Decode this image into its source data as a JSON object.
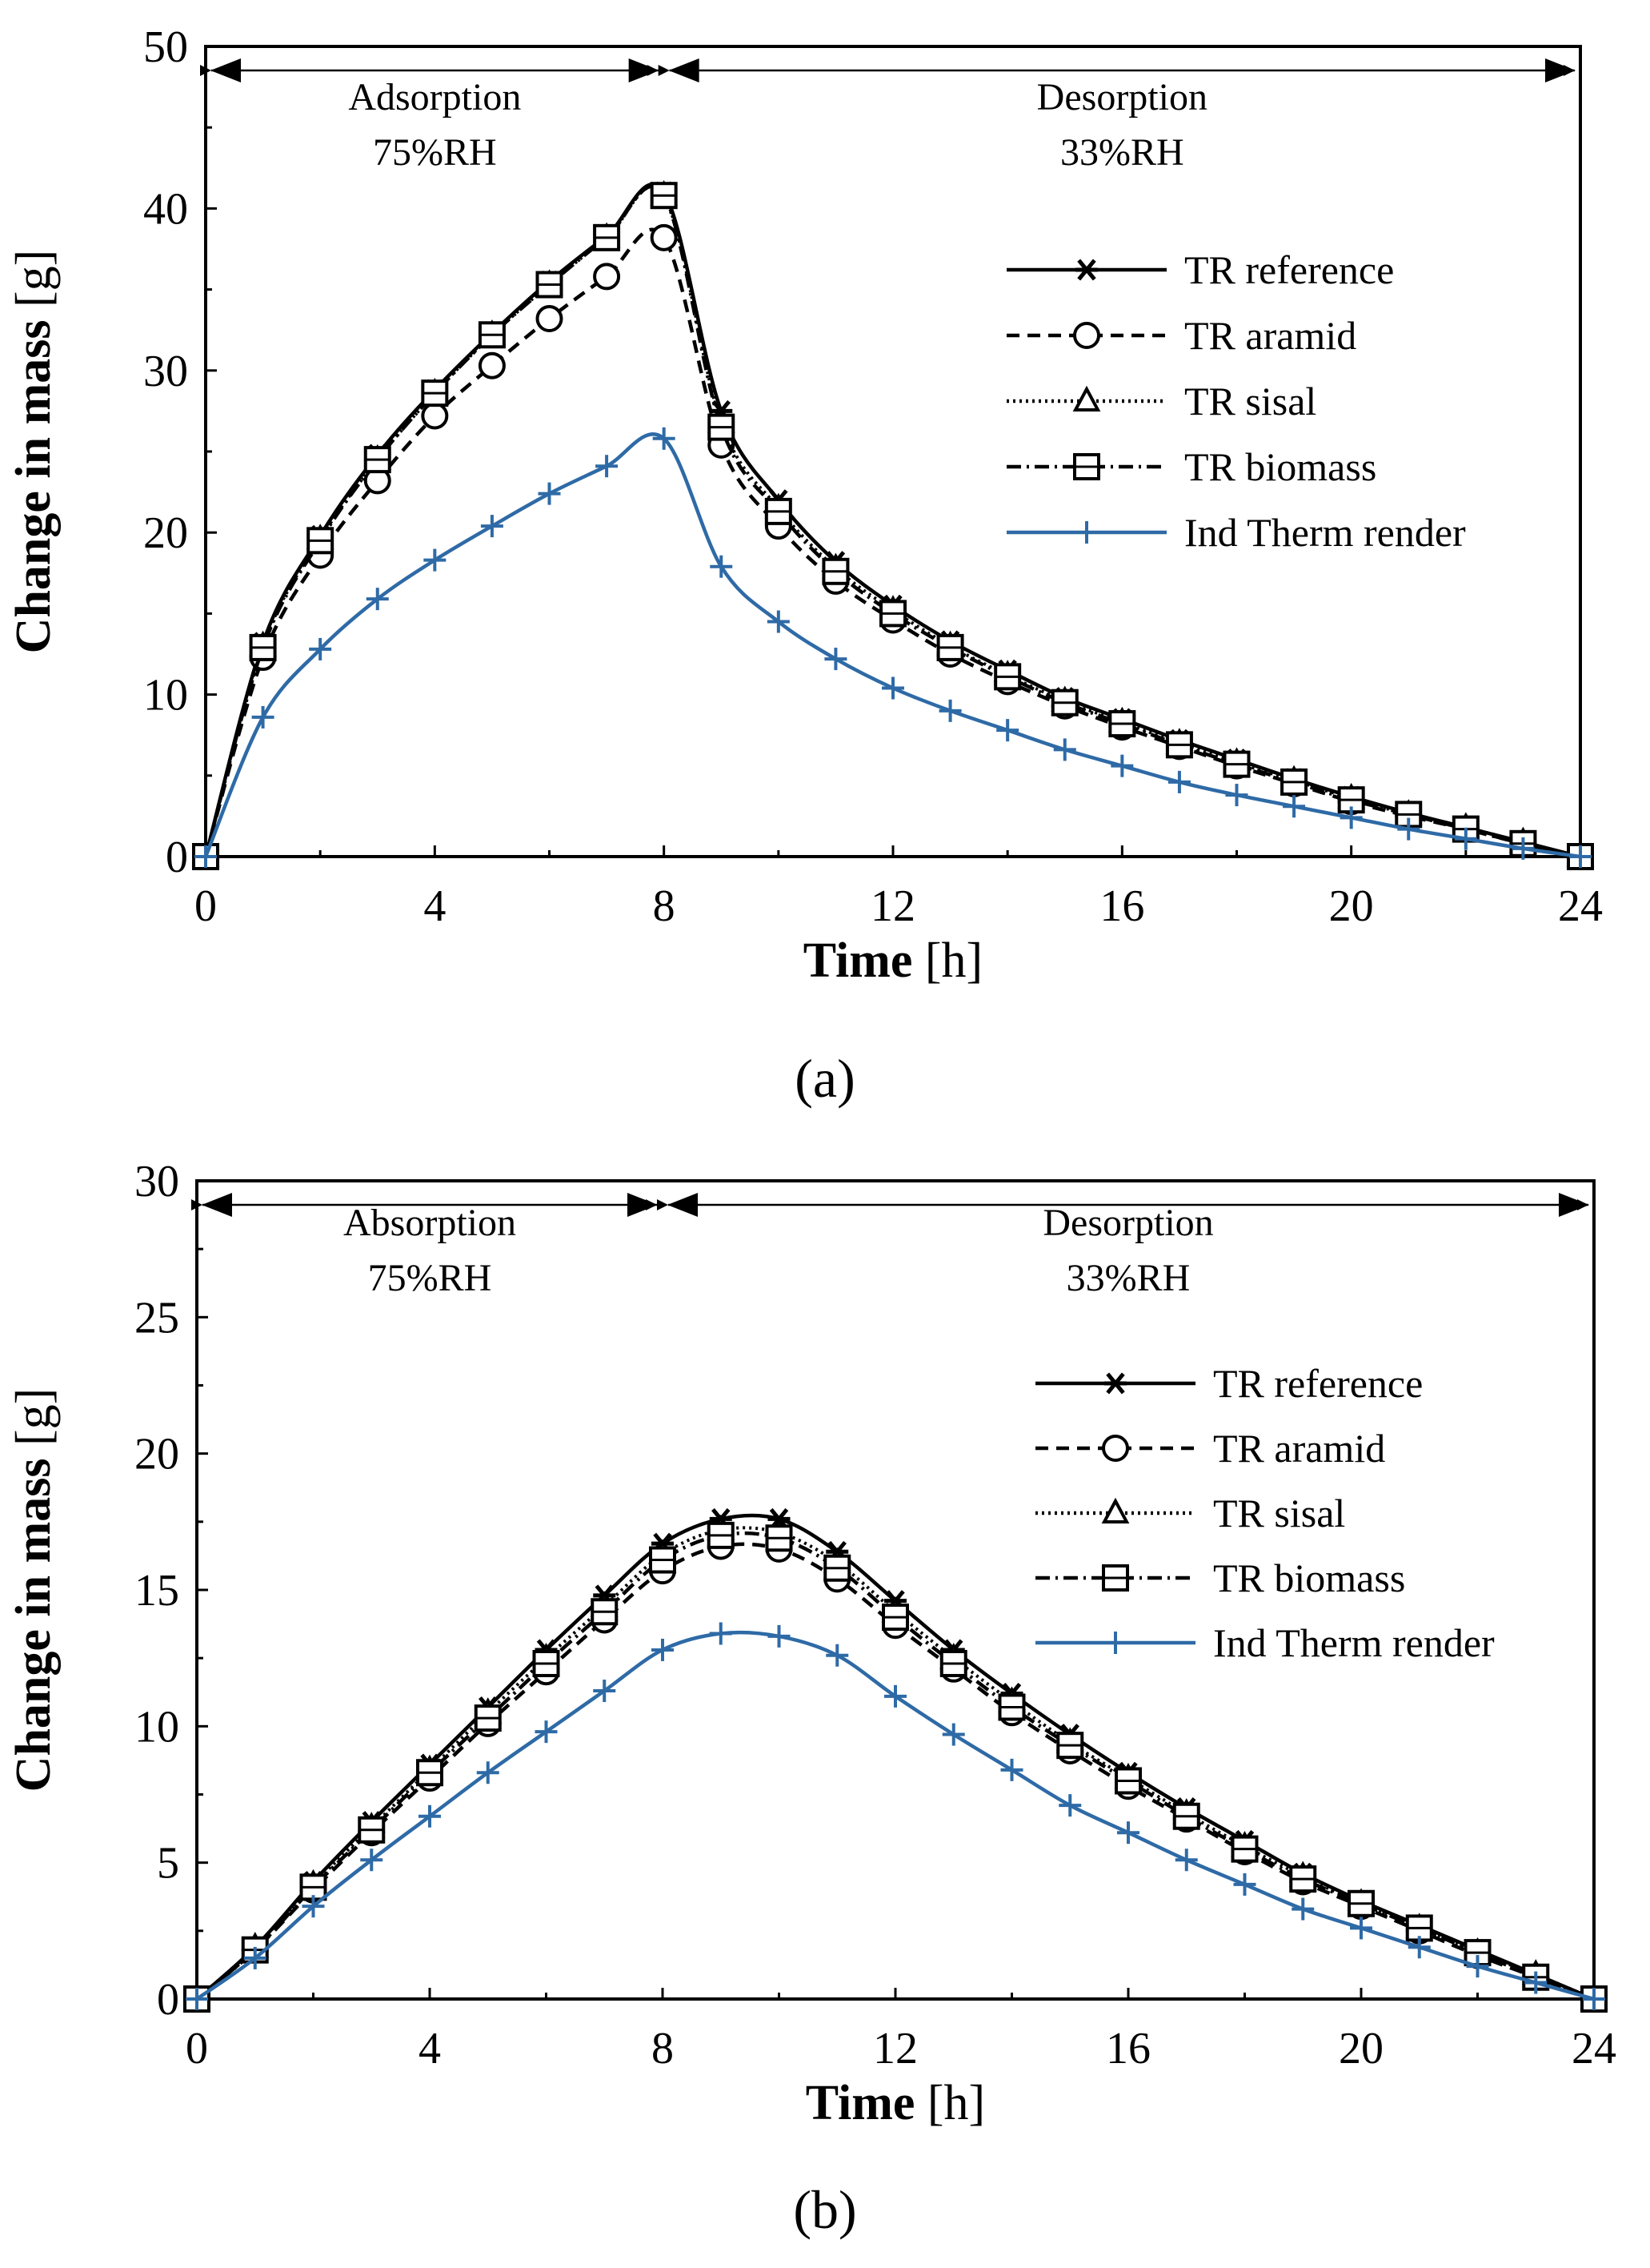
{
  "chart_data": [
    {
      "type": "line",
      "panel_label": "(a)",
      "title": "",
      "xlabel_bold": "Time",
      "xlabel_unit": "[h]",
      "ylabel_bold": "Change in mass",
      "ylabel_unit": "[g]",
      "xlim": [
        0,
        24
      ],
      "ylim": [
        0,
        50
      ],
      "xticks": [
        "0",
        "4",
        "8",
        "12",
        "16",
        "20",
        "24"
      ],
      "yticks": [
        "0",
        "10",
        "20",
        "30",
        "40",
        "50"
      ],
      "grid": false,
      "legend_position": "right",
      "phases": [
        {
          "name": "Adsorption",
          "condition": "75%RH",
          "from": 0,
          "to": 8
        },
        {
          "name": "Desorption",
          "condition": "33%RH",
          "from": 8,
          "to": 24
        }
      ],
      "x": [
        0,
        1,
        2,
        3,
        4,
        5,
        6,
        7,
        8,
        9,
        10,
        11,
        12,
        13,
        14,
        15,
        16,
        17,
        18,
        19,
        20,
        21,
        22,
        23,
        24
      ],
      "series": [
        {
          "name": "TR reference",
          "color": "#000000",
          "dash": "",
          "marker": "star",
          "values": [
            0,
            13.2,
            19.8,
            24.8,
            28.8,
            32.3,
            35.5,
            38.3,
            41.0,
            27.5,
            22.0,
            18.2,
            15.5,
            13.3,
            11.5,
            9.8,
            8.5,
            7.2,
            6.0,
            4.8,
            3.7,
            2.7,
            1.8,
            0.9,
            0
          ]
        },
        {
          "name": "TR aramid",
          "color": "#000000",
          "dash": "16,10",
          "marker": "circle",
          "values": [
            0,
            12.3,
            18.6,
            23.2,
            27.2,
            30.3,
            33.2,
            35.8,
            38.2,
            25.4,
            20.4,
            17.0,
            14.6,
            12.5,
            10.8,
            9.3,
            8.0,
            6.8,
            5.6,
            4.5,
            3.4,
            2.5,
            1.7,
            0.8,
            0
          ]
        },
        {
          "name": "TR sisal",
          "color": "#000000",
          "dash": "3,5",
          "marker": "triangle",
          "values": [
            0,
            13.0,
            19.6,
            24.5,
            28.6,
            32.2,
            35.3,
            38.2,
            40.8,
            26.8,
            21.5,
            17.8,
            15.2,
            13.0,
            11.2,
            9.6,
            8.3,
            7.0,
            5.8,
            4.7,
            3.6,
            2.6,
            1.8,
            0.9,
            0
          ]
        },
        {
          "name": "TR biomass",
          "color": "#000000",
          "dash": "18,7,3,7",
          "marker": "square",
          "values": [
            0,
            12.9,
            19.5,
            24.5,
            28.6,
            32.2,
            35.3,
            38.2,
            40.8,
            26.5,
            21.3,
            17.6,
            15.0,
            12.9,
            11.1,
            9.5,
            8.2,
            6.9,
            5.7,
            4.6,
            3.5,
            2.6,
            1.7,
            0.8,
            0
          ]
        },
        {
          "name": "Ind Therm render",
          "color": "#2e6aa6",
          "dash": "",
          "marker": "plus",
          "values": [
            0,
            8.6,
            12.8,
            15.9,
            18.3,
            20.4,
            22.4,
            24.1,
            25.8,
            17.9,
            14.5,
            12.2,
            10.4,
            9.0,
            7.8,
            6.6,
            5.6,
            4.6,
            3.8,
            3.1,
            2.4,
            1.7,
            1.1,
            0.5,
            0
          ]
        }
      ]
    },
    {
      "type": "line",
      "panel_label": "(b)",
      "title": "",
      "xlabel_bold": "Time",
      "xlabel_unit": "[h]",
      "ylabel_bold": "Change in mass",
      "ylabel_unit": "[g]",
      "xlim": [
        0,
        24
      ],
      "ylim": [
        0,
        30
      ],
      "xticks": [
        "0",
        "4",
        "8",
        "12",
        "16",
        "20",
        "24"
      ],
      "yticks": [
        "0",
        "5",
        "10",
        "15",
        "20",
        "25",
        "30"
      ],
      "grid": false,
      "legend_position": "right",
      "phases": [
        {
          "name": "Absorption",
          "condition": "75%RH",
          "from": 0,
          "to": 8
        },
        {
          "name": "Desorption",
          "condition": "33%RH",
          "from": 8,
          "to": 24
        }
      ],
      "x": [
        0,
        1,
        2,
        3,
        4,
        5,
        6,
        7,
        8,
        9,
        10,
        11,
        12,
        13,
        14,
        15,
        16,
        17,
        18,
        19,
        20,
        21,
        22,
        23,
        24
      ],
      "series": [
        {
          "name": "TR reference",
          "color": "#000000",
          "dash": "",
          "marker": "star",
          "values": [
            0,
            1.9,
            4.3,
            6.5,
            8.6,
            10.7,
            12.8,
            14.8,
            16.7,
            17.6,
            17.6,
            16.4,
            14.6,
            12.8,
            11.2,
            9.7,
            8.3,
            7.0,
            5.8,
            4.6,
            3.6,
            2.7,
            1.8,
            0.9,
            0
          ]
        },
        {
          "name": "TR aramid",
          "color": "#000000",
          "dash": "16,10",
          "marker": "circle",
          "values": [
            0,
            1.8,
            4.0,
            6.1,
            8.1,
            10.1,
            12.0,
            13.9,
            15.7,
            16.6,
            16.5,
            15.4,
            13.7,
            12.1,
            10.5,
            9.1,
            7.8,
            6.6,
            5.4,
            4.3,
            3.4,
            2.5,
            1.6,
            0.8,
            0
          ]
        },
        {
          "name": "TR sisal",
          "color": "#000000",
          "dash": "3,5",
          "marker": "triangle",
          "values": [
            0,
            1.9,
            4.2,
            6.3,
            8.4,
            10.5,
            12.5,
            14.4,
            16.3,
            17.2,
            17.1,
            16.0,
            14.2,
            12.5,
            10.9,
            9.4,
            8.1,
            6.8,
            5.6,
            4.5,
            3.5,
            2.6,
            1.7,
            0.9,
            0
          ]
        },
        {
          "name": "TR biomass",
          "color": "#000000",
          "dash": "18,7,3,7",
          "marker": "square",
          "values": [
            0,
            1.8,
            4.1,
            6.2,
            8.3,
            10.3,
            12.3,
            14.2,
            16.1,
            17.0,
            16.9,
            15.8,
            14.0,
            12.3,
            10.7,
            9.3,
            8.0,
            6.7,
            5.5,
            4.4,
            3.5,
            2.6,
            1.7,
            0.8,
            0
          ]
        },
        {
          "name": "Ind Therm render",
          "color": "#2e6aa6",
          "dash": "",
          "marker": "plus",
          "values": [
            0,
            1.5,
            3.4,
            5.1,
            6.7,
            8.3,
            9.8,
            11.3,
            12.8,
            13.4,
            13.3,
            12.6,
            11.1,
            9.7,
            8.4,
            7.1,
            6.1,
            5.1,
            4.2,
            3.3,
            2.6,
            1.9,
            1.2,
            0.6,
            0
          ]
        }
      ]
    }
  ]
}
